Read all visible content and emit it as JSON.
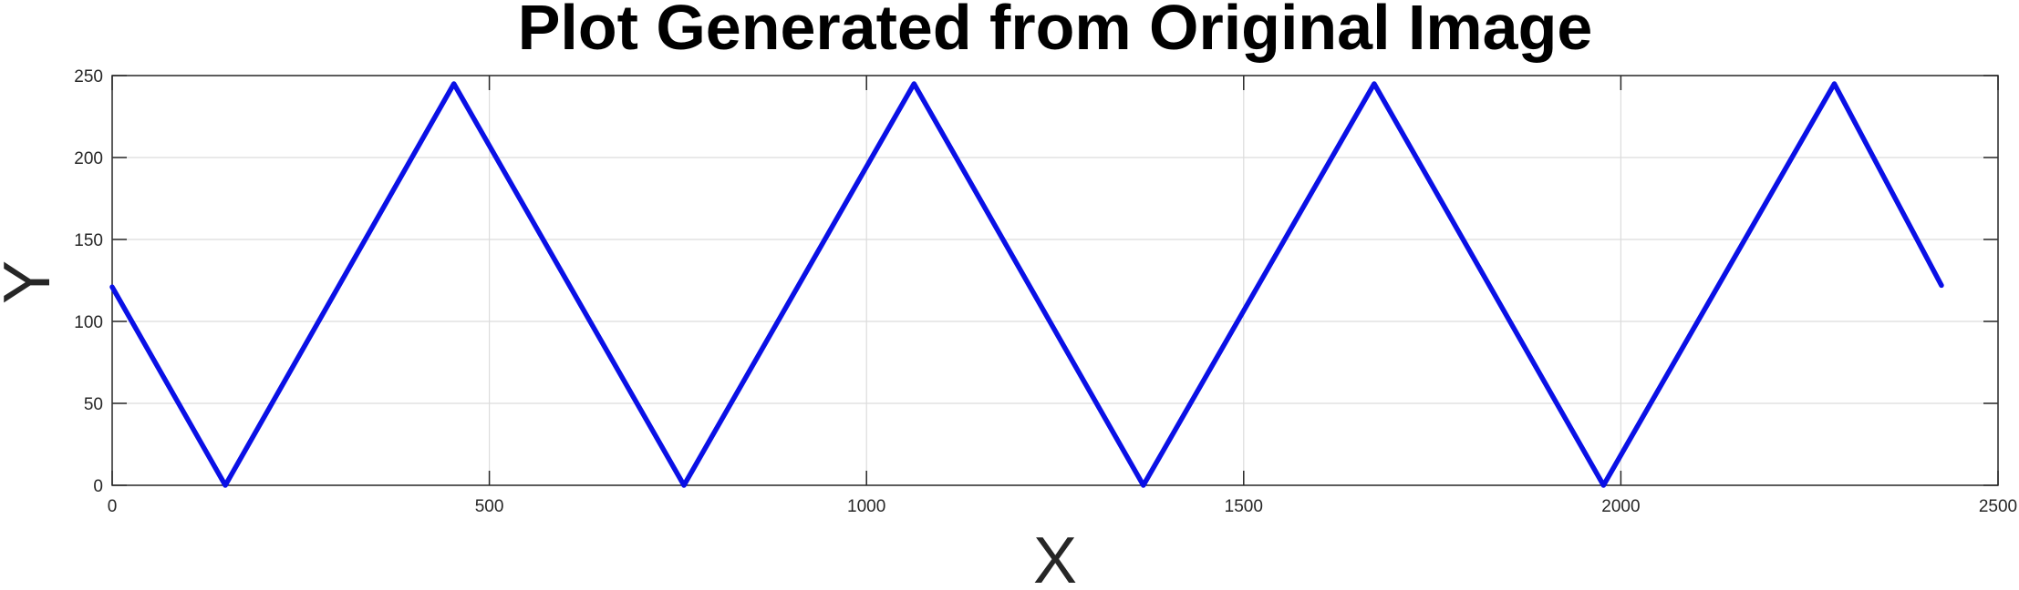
{
  "chart_data": {
    "type": "line",
    "title": "Plot Generated from Original Image",
    "xlabel": "X",
    "ylabel": "Y",
    "xlim": [
      0,
      2500
    ],
    "ylim": [
      0,
      250
    ],
    "xticks": [
      0,
      500,
      1000,
      1500,
      2000,
      2500
    ],
    "yticks": [
      0,
      50,
      100,
      150,
      200,
      250
    ],
    "xtick_labels": [
      "0",
      "500",
      "1000",
      "1500",
      "2000",
      "2500"
    ],
    "ytick_labels": [
      "0",
      "50",
      "100",
      "150",
      "200",
      "250"
    ],
    "grid": true,
    "series": [
      {
        "color": "#0a10e6",
        "x": [
          0,
          150,
          453,
          758,
          1063,
          1367,
          1673,
          1977,
          2283,
          2425
        ],
        "y": [
          121,
          0,
          245,
          0,
          245,
          0,
          245,
          0,
          245,
          122
        ]
      }
    ]
  }
}
